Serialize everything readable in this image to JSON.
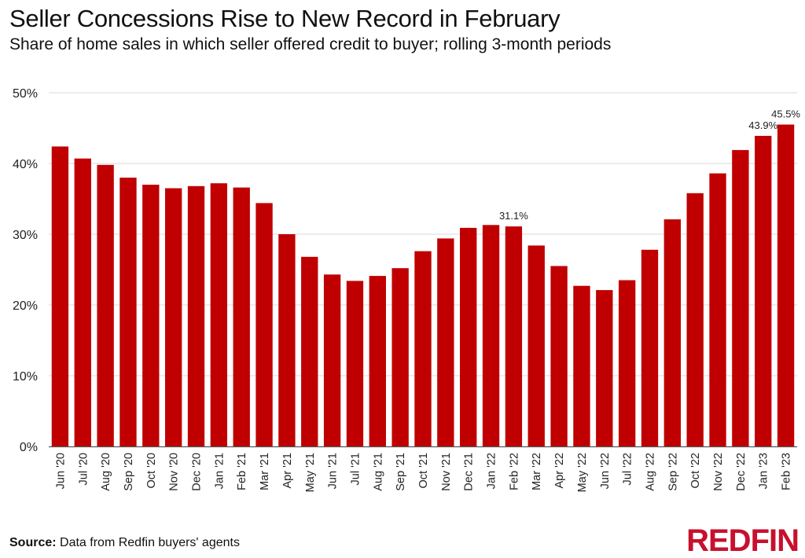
{
  "title": "Seller Concessions Rise to New Record in February",
  "subtitle": "Share of home sales in which seller offered credit to buyer; rolling 3-month periods",
  "footer": {
    "source_label": "Source:",
    "source_text": " Data from Redfin buyers' agents"
  },
  "logo": {
    "text": "REDFIN",
    "color": "#c8102e"
  },
  "colors": {
    "bar": "#c00000",
    "grid": "#d9d9d9",
    "axis": "#555555"
  },
  "chart_data": {
    "type": "bar",
    "categories": [
      "Jun '20",
      "Jul '20",
      "Aug '20",
      "Sep '20",
      "Oct '20",
      "Nov '20",
      "Dec '20",
      "Jan '21",
      "Feb '21",
      "Mar '21",
      "Apr '21",
      "May '21",
      "Jun '21",
      "Jul '21",
      "Aug '21",
      "Sep '21",
      "Oct '21",
      "Nov '21",
      "Dec '21",
      "Jan '22",
      "Feb '22",
      "Mar '22",
      "Apr '22",
      "May '22",
      "Jun '22",
      "Jul '22",
      "Aug '22",
      "Sep '22",
      "Oct '22",
      "Nov '22",
      "Dec '22",
      "Jan '23",
      "Feb '23"
    ],
    "values": [
      42.4,
      40.7,
      39.8,
      38.0,
      37.0,
      36.5,
      36.8,
      37.2,
      36.6,
      34.4,
      30.0,
      26.8,
      24.3,
      23.4,
      24.1,
      25.2,
      27.6,
      29.4,
      30.9,
      31.3,
      31.1,
      28.4,
      25.5,
      22.7,
      22.1,
      23.5,
      27.8,
      32.1,
      35.8,
      38.6,
      41.9,
      43.9,
      45.5
    ],
    "data_labels": [
      {
        "index": 20,
        "text": "31.1%"
      },
      {
        "index": 31,
        "text": "43.9%"
      },
      {
        "index": 32,
        "text": "45.5%"
      }
    ],
    "yticks": [
      "0%",
      "10%",
      "20%",
      "30%",
      "40%",
      "50%"
    ],
    "ylim": [
      0,
      50
    ],
    "grid": true,
    "legend": "none"
  }
}
